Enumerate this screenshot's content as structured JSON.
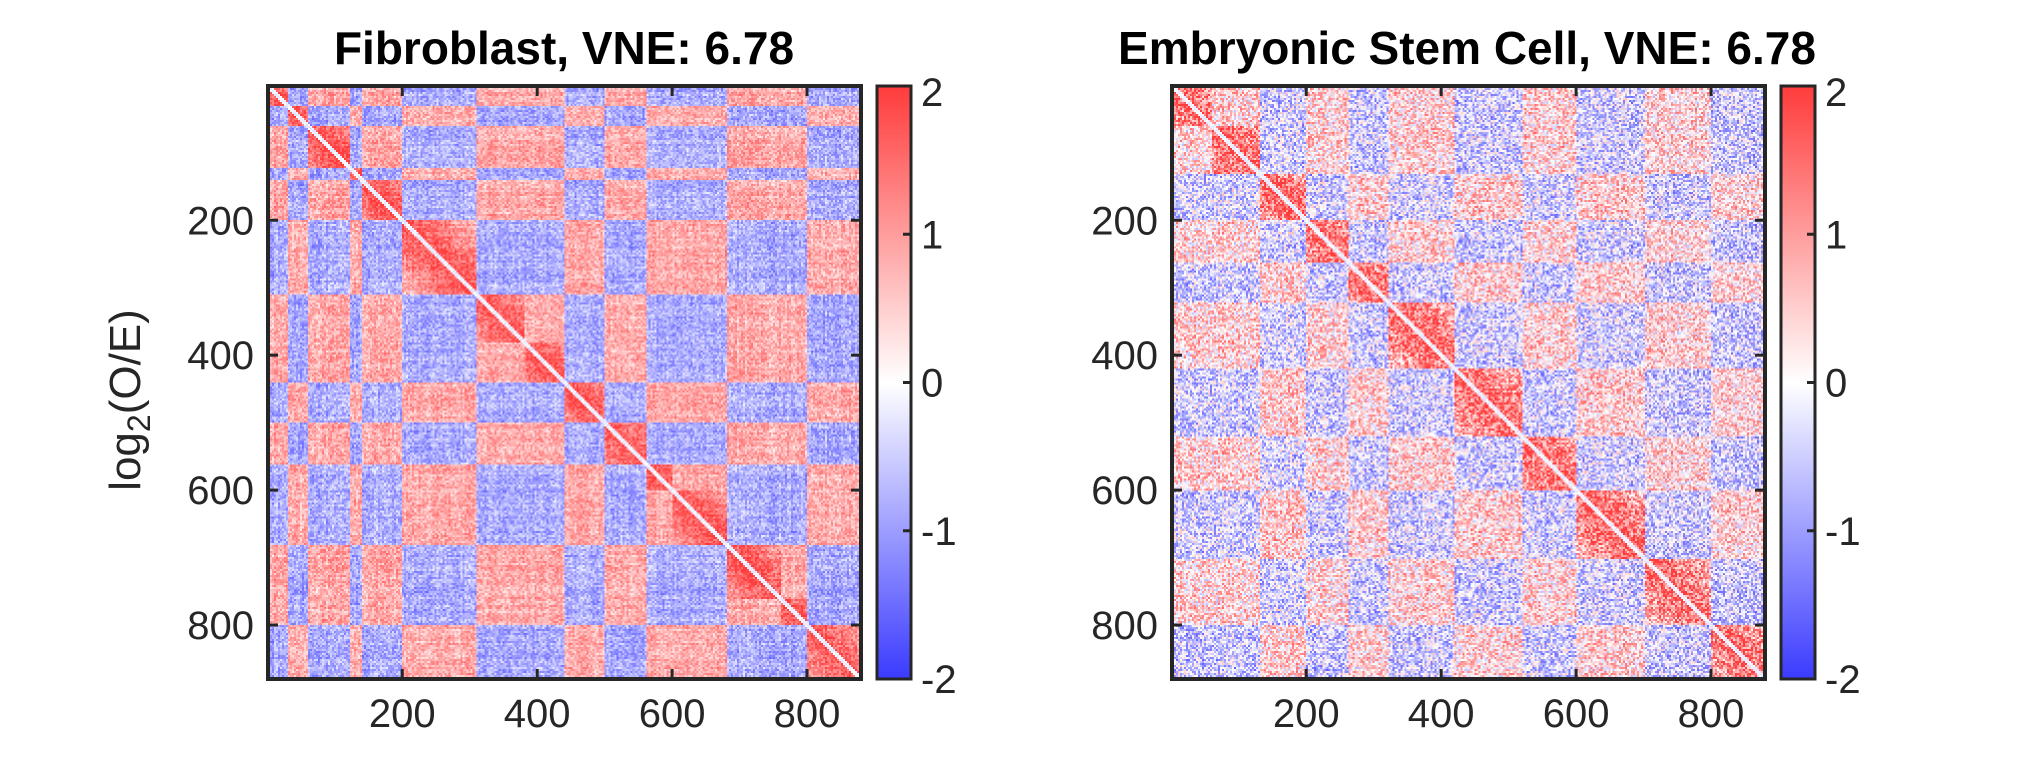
{
  "chart_data": [
    {
      "type": "heatmap",
      "title": "Fibroblast, VNE: 6.78",
      "xlabel": "",
      "ylabel": "log2(O/E)",
      "xlim": [
        1,
        880
      ],
      "ylim": [
        1,
        880
      ],
      "x_ticks": [
        200,
        400,
        600,
        800
      ],
      "y_ticks": [
        200,
        400,
        600,
        800
      ],
      "y_reversed": true,
      "colorbar": {
        "range": [
          -2,
          2
        ],
        "ticks": [
          2,
          1,
          0,
          -1,
          -2
        ],
        "colormap": [
          "#3b3bff",
          "#ffffff",
          "#ff3b3b"
        ]
      },
      "domains": [
        {
          "start": 1,
          "end": 30,
          "pattern": 1
        },
        {
          "start": 30,
          "end": 60,
          "pattern": 0
        },
        {
          "start": 60,
          "end": 120,
          "pattern": 1
        },
        {
          "start": 120,
          "end": 140,
          "pattern": 0
        },
        {
          "start": 140,
          "end": 200,
          "pattern": 1
        },
        {
          "start": 200,
          "end": 310,
          "pattern": 0
        },
        {
          "start": 310,
          "end": 380,
          "pattern": 1
        },
        {
          "start": 380,
          "end": 440,
          "pattern": 1
        },
        {
          "start": 440,
          "end": 500,
          "pattern": 0
        },
        {
          "start": 500,
          "end": 560,
          "pattern": 1
        },
        {
          "start": 560,
          "end": 600,
          "pattern": 0
        },
        {
          "start": 600,
          "end": 680,
          "pattern": 0
        },
        {
          "start": 680,
          "end": 760,
          "pattern": 1
        },
        {
          "start": 760,
          "end": 800,
          "pattern": 1
        },
        {
          "start": 800,
          "end": 880,
          "pattern": 0
        }
      ],
      "strength": 0.85,
      "noise": 0.45,
      "diag_boost": 1.6
    },
    {
      "type": "heatmap",
      "title": "Embryonic Stem Cell, VNE: 6.78",
      "xlabel": "",
      "ylabel": "",
      "xlim": [
        1,
        880
      ],
      "ylim": [
        1,
        880
      ],
      "x_ticks": [
        200,
        400,
        600,
        800
      ],
      "y_ticks": [
        200,
        400,
        600,
        800
      ],
      "y_reversed": true,
      "colorbar": {
        "range": [
          -2,
          2
        ],
        "ticks": [
          2,
          1,
          0,
          -1,
          -2
        ],
        "colormap": [
          "#3b3bff",
          "#ffffff",
          "#ff3b3b"
        ]
      },
      "domains": [
        {
          "start": 1,
          "end": 60,
          "pattern": 0
        },
        {
          "start": 60,
          "end": 130,
          "pattern": 0
        },
        {
          "start": 130,
          "end": 200,
          "pattern": 1
        },
        {
          "start": 200,
          "end": 260,
          "pattern": 0
        },
        {
          "start": 260,
          "end": 320,
          "pattern": 1
        },
        {
          "start": 320,
          "end": 420,
          "pattern": 0
        },
        {
          "start": 420,
          "end": 520,
          "pattern": 1
        },
        {
          "start": 520,
          "end": 600,
          "pattern": 0
        },
        {
          "start": 600,
          "end": 700,
          "pattern": 1
        },
        {
          "start": 700,
          "end": 800,
          "pattern": 0
        },
        {
          "start": 800,
          "end": 880,
          "pattern": 1
        }
      ],
      "strength": 0.45,
      "noise": 0.95,
      "diag_boost": 1.4
    }
  ]
}
